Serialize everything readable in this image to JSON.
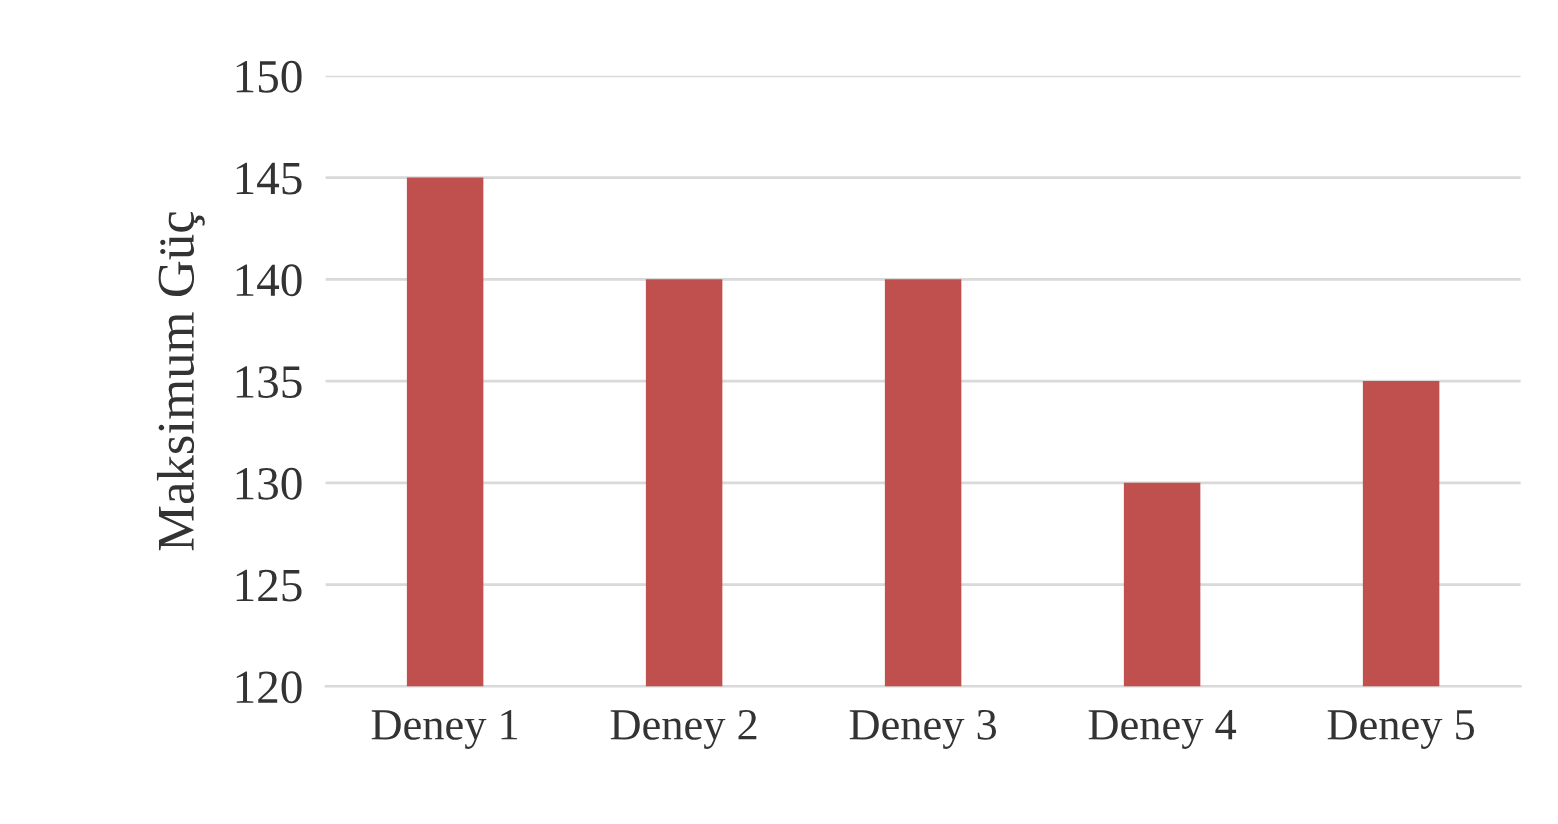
{
  "chart_data": {
    "type": "bar",
    "ylabel": "Maksimum Güç",
    "categories": [
      "Deney 1",
      "Deney 2",
      "Deney 3",
      "Deney 4",
      "Deney 5"
    ],
    "values": [
      145,
      140,
      140,
      130,
      135
    ],
    "color": "#c0504d",
    "ylim": [
      120,
      150
    ],
    "yticks": [
      120,
      125,
      130,
      135,
      140,
      145,
      150
    ],
    "grid": "y"
  }
}
